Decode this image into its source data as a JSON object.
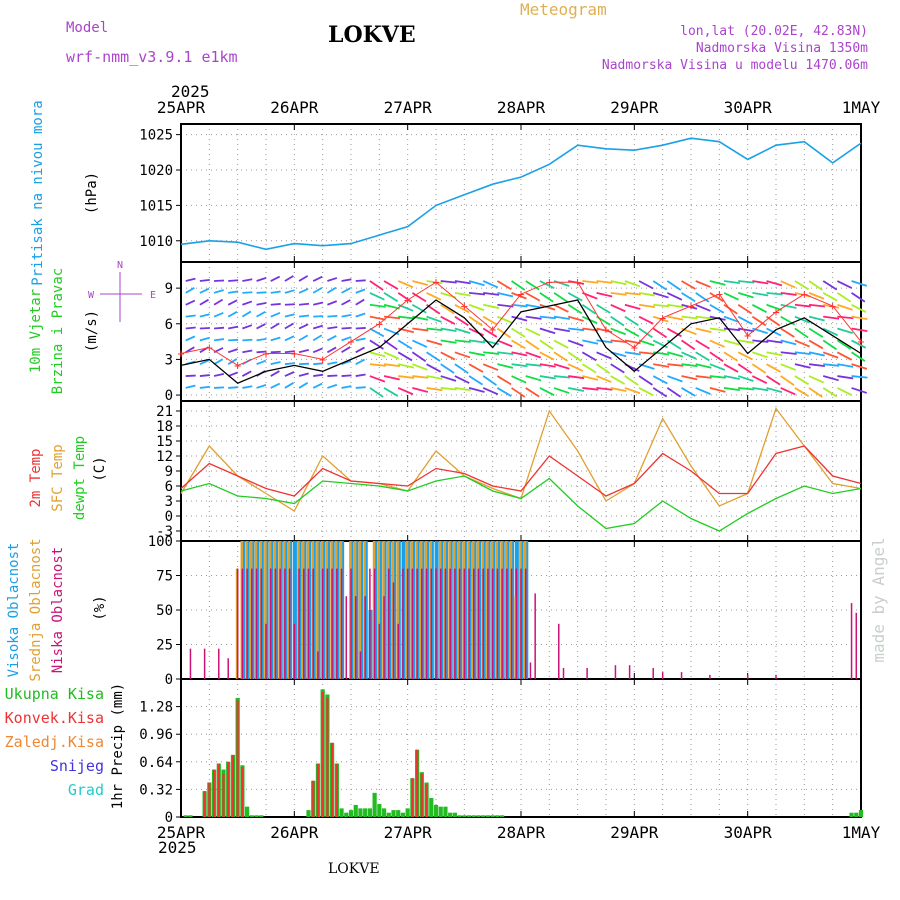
{
  "header": {
    "model_label": "Model",
    "model_name": "wrf-nmm_v3.9.1 e1km",
    "station": "LOKVE",
    "chart_kind": "Meteogram",
    "coords": "lon,lat (20.02E, 42.83N)",
    "elevation": "Nadmorska Visina 1350m",
    "model_elevation": "Nadmorska Visina u modelu 1470.06m",
    "credit": "made by Angel",
    "station_bottom": "LOKVE"
  },
  "colors": {
    "pressure": "#1aa0e6",
    "wind_speed": "#000000",
    "wind_gust": "#ff3333",
    "t2m": "#ee3333",
    "tsfc": "#e0a030",
    "dewpt": "#22cc22",
    "cloud_high": "#1aa0e6",
    "cloud_mid": "#e0a030",
    "cloud_low": "#cc1177",
    "precip_total": "#22bb22",
    "precip_conv": "#ee3333",
    "header_purple": "#aa44cc",
    "header_gold": "#e0b050"
  },
  "chart_data": [
    {
      "type": "line",
      "panel": "pressure",
      "ylabel_lines": [
        "Pritisak na nivou mora",
        "(hPa)"
      ],
      "yticks": [
        1010,
        1015,
        1020,
        1025
      ],
      "ylim": [
        1007,
        1026.5
      ],
      "x_labels_top": [
        "25APR",
        "26APR",
        "27APR",
        "28APR",
        "29APR",
        "30APR",
        "1MAY"
      ],
      "year_top": "2025",
      "x_hours": [
        0,
        6,
        12,
        18,
        24,
        30,
        36,
        42,
        48,
        54,
        60,
        66,
        72,
        78,
        84,
        90,
        96,
        102,
        108,
        114,
        120,
        126,
        132,
        138,
        144
      ],
      "series": [
        {
          "values": [
            1009.5,
            1010.0,
            1009.8,
            1008.8,
            1009.6,
            1009.3,
            1009.6,
            1010.8,
            1012.0,
            1015.0,
            1016.5,
            1018.0,
            1019.0,
            1020.8,
            1023.5,
            1023.0,
            1022.8,
            1023.5,
            1024.5,
            1024.0,
            1021.5,
            1023.5,
            1024.0,
            1021.0,
            1023.8
          ]
        }
      ]
    },
    {
      "type": "line",
      "panel": "wind",
      "ylabel_lines": [
        "10m Vjetar",
        "Brzina i Pravac",
        "(m/s)"
      ],
      "compass": {
        "n": "N",
        "w": "W",
        "e": "E"
      },
      "yticks": [
        0,
        3,
        6,
        9
      ],
      "ylim": [
        -0.5,
        11.2
      ],
      "x_hours": [
        0,
        6,
        12,
        18,
        24,
        30,
        36,
        42,
        48,
        54,
        60,
        66,
        72,
        78,
        84,
        90,
        96,
        102,
        108,
        114,
        120,
        126,
        132,
        138,
        144
      ],
      "series": [
        {
          "name": "speed",
          "values": [
            2.5,
            3.0,
            1.0,
            2.0,
            2.5,
            2.0,
            3.0,
            4.0,
            6.0,
            8.0,
            6.5,
            4.0,
            7.0,
            7.5,
            8.0,
            4.0,
            2.0,
            4.0,
            6.0,
            6.5,
            3.5,
            5.5,
            6.5,
            5.0,
            3.5
          ]
        },
        {
          "name": "gust",
          "values": [
            3.5,
            4.0,
            2.5,
            3.5,
            3.5,
            3.0,
            4.5,
            6.0,
            8.0,
            9.5,
            7.5,
            5.5,
            8.5,
            9.5,
            9.5,
            5.5,
            4.0,
            6.5,
            7.5,
            8.5,
            5.0,
            7.0,
            8.5,
            7.5,
            4.5
          ]
        }
      ]
    },
    {
      "type": "line",
      "panel": "temperature",
      "ylabel_lines": [
        "2m Temp",
        "SFC Temp",
        "dewpt Temp",
        "(C)"
      ],
      "yticks": [
        -3,
        0,
        3,
        6,
        9,
        12,
        15,
        18,
        21
      ],
      "ylim": [
        -5,
        23
      ],
      "x_hours": [
        0,
        6,
        12,
        18,
        24,
        30,
        36,
        42,
        48,
        54,
        60,
        66,
        72,
        78,
        84,
        90,
        96,
        102,
        108,
        114,
        120,
        126,
        132,
        138,
        144
      ],
      "series": [
        {
          "name": "2m Temp",
          "values": [
            5.5,
            10.5,
            8.0,
            5.5,
            4.0,
            9.5,
            7.0,
            6.5,
            6.0,
            9.5,
            8.5,
            6.0,
            5.0,
            12.0,
            8.0,
            4.0,
            6.5,
            12.5,
            9.0,
            4.5,
            4.5,
            12.5,
            14.0,
            8.0,
            6.5
          ]
        },
        {
          "name": "SFC Temp",
          "values": [
            4.5,
            14.0,
            8.0,
            4.5,
            1.0,
            12.0,
            7.0,
            6.5,
            5.0,
            13.0,
            8.0,
            5.5,
            3.5,
            21.0,
            13.0,
            3.0,
            6.5,
            19.5,
            10.0,
            2.0,
            4.5,
            21.5,
            14.0,
            6.5,
            5.5
          ]
        },
        {
          "name": "dewpt Temp",
          "values": [
            5.0,
            6.5,
            4.0,
            3.5,
            2.5,
            7.0,
            6.5,
            6.0,
            5.0,
            7.0,
            8.0,
            5.0,
            3.5,
            7.5,
            2.0,
            -2.5,
            -1.5,
            3.0,
            -0.5,
            -3.0,
            0.5,
            3.5,
            6.0,
            4.5,
            5.5
          ]
        }
      ]
    },
    {
      "type": "bar",
      "panel": "cloud",
      "ylabel_lines": [
        "Visoka Oblacnost",
        "Srednja Oblacnost",
        "Niska Oblacnost",
        "(%)"
      ],
      "yticks": [
        0,
        25,
        50,
        75,
        100
      ],
      "ylim": [
        0,
        100
      ],
      "x_hours": [
        2,
        5,
        8,
        10,
        12,
        13,
        14,
        15,
        16,
        17,
        18,
        19,
        20,
        21,
        22,
        23,
        24,
        25,
        26,
        27,
        28,
        29,
        30,
        31,
        32,
        33,
        34,
        35,
        36,
        37,
        38,
        39,
        40,
        41,
        42,
        43,
        44,
        45,
        46,
        47,
        48,
        49,
        50,
        51,
        52,
        53,
        54,
        55,
        56,
        57,
        58,
        59,
        60,
        61,
        62,
        63,
        64,
        65,
        66,
        67,
        68,
        69,
        70,
        71,
        72,
        73,
        74,
        75,
        80,
        81,
        86,
        92,
        95,
        100,
        102,
        106,
        112,
        120,
        126,
        142,
        143
      ],
      "series": [
        {
          "name": "Visoka Oblacnost",
          "values": [
            0,
            0,
            0,
            0,
            0,
            100,
            100,
            100,
            100,
            100,
            100,
            100,
            100,
            100,
            100,
            100,
            100,
            100,
            100,
            100,
            100,
            100,
            100,
            100,
            100,
            100,
            100,
            0,
            100,
            100,
            100,
            100,
            50,
            100,
            100,
            100,
            100,
            100,
            100,
            100,
            100,
            100,
            100,
            100,
            100,
            100,
            100,
            100,
            100,
            100,
            100,
            100,
            100,
            100,
            100,
            100,
            100,
            100,
            100,
            100,
            100,
            100,
            100,
            100,
            100,
            100,
            0,
            0,
            0,
            0,
            0,
            0,
            0,
            0,
            0,
            0,
            0,
            0,
            0,
            0,
            0
          ]
        },
        {
          "name": "Srednja Oblacnost",
          "values": [
            0,
            0,
            0,
            0,
            80,
            100,
            100,
            100,
            100,
            100,
            100,
            100,
            100,
            100,
            100,
            100,
            0,
            100,
            100,
            100,
            100,
            100,
            100,
            100,
            100,
            100,
            100,
            0,
            100,
            100,
            100,
            100,
            0,
            100,
            100,
            100,
            100,
            100,
            100,
            0,
            100,
            100,
            100,
            100,
            100,
            100,
            0,
            100,
            100,
            100,
            100,
            100,
            100,
            100,
            100,
            100,
            100,
            100,
            100,
            100,
            100,
            100,
            100,
            60,
            100,
            100,
            0,
            0,
            0,
            0,
            0,
            0,
            0,
            0,
            0,
            0,
            0,
            0,
            0,
            0,
            0
          ]
        },
        {
          "name": "Niska Oblacnost",
          "values": [
            22,
            22,
            22,
            15,
            80,
            80,
            80,
            80,
            80,
            80,
            40,
            80,
            80,
            80,
            80,
            80,
            40,
            80,
            80,
            80,
            80,
            20,
            80,
            80,
            80,
            80,
            80,
            60,
            80,
            60,
            20,
            60,
            80,
            80,
            40,
            60,
            80,
            70,
            40,
            80,
            80,
            80,
            80,
            80,
            80,
            80,
            80,
            80,
            80,
            80,
            80,
            80,
            80,
            80,
            80,
            80,
            80,
            80,
            80,
            80,
            80,
            80,
            80,
            80,
            80,
            80,
            12,
            62,
            40,
            8,
            8,
            10,
            10,
            8,
            5,
            5,
            3,
            3,
            3,
            55,
            48
          ]
        }
      ]
    },
    {
      "type": "bar",
      "panel": "precip",
      "ylabel_lines": [
        "1hr Precip (mm)"
      ],
      "legend": [
        {
          "label": "Ukupna Kisa",
          "color": "#22bb22"
        },
        {
          "label": "Konvek.Kisa",
          "color": "#ee3333"
        },
        {
          "label": "Zaledj.Kisa",
          "color": "#ee8833"
        },
        {
          "label": "Snijeg",
          "color": "#4433dd"
        },
        {
          "label": "Grad",
          "color": "#22cccc"
        }
      ],
      "yticks": [
        0,
        0.32,
        0.64,
        0.96,
        1.28
      ],
      "ylim": [
        0,
        1.6
      ],
      "x_labels_bottom": [
        "25APR",
        "26APR",
        "27APR",
        "28APR",
        "29APR",
        "30APR",
        "1MAY"
      ],
      "year_bottom": "2025",
      "x_hours": [
        1,
        2,
        5,
        6,
        7,
        8,
        9,
        10,
        11,
        12,
        13,
        14,
        15,
        16,
        17,
        27,
        28,
        29,
        30,
        31,
        32,
        33,
        34,
        35,
        36,
        37,
        38,
        39,
        40,
        41,
        42,
        43,
        44,
        45,
        46,
        47,
        48,
        49,
        50,
        51,
        52,
        53,
        54,
        55,
        56,
        57,
        58,
        59,
        60,
        61,
        62,
        63,
        64,
        65,
        66,
        67,
        68,
        142,
        143,
        144
      ],
      "series": [
        {
          "name": "Ukupna Kisa",
          "values": [
            0.02,
            0.02,
            0.3,
            0.4,
            0.55,
            0.62,
            0.55,
            0.64,
            0.72,
            1.38,
            0.6,
            0.12,
            0.02,
            0.02,
            0.02,
            0.08,
            0.42,
            0.62,
            1.48,
            1.42,
            0.86,
            0.62,
            0.1,
            0.05,
            0.08,
            0.14,
            0.1,
            0.1,
            0.1,
            0.28,
            0.15,
            0.1,
            0.05,
            0.08,
            0.08,
            0.05,
            0.1,
            0.45,
            0.78,
            0.52,
            0.4,
            0.22,
            0.14,
            0.12,
            0.12,
            0.05,
            0.05,
            0.02,
            0.02,
            0.02,
            0.02,
            0.02,
            0.02,
            0.02,
            0.02,
            0.02,
            0.02,
            0.05,
            0.05,
            0.08
          ]
        },
        {
          "name": "Konvek.Kisa",
          "values": [
            0,
            0,
            0.3,
            0.4,
            0.55,
            0.62,
            0.5,
            0.64,
            0.72,
            1.35,
            0.58,
            0,
            0,
            0,
            0,
            0,
            0.42,
            0.62,
            1.45,
            1.38,
            0.86,
            0.62,
            0,
            0,
            0,
            0,
            0,
            0,
            0,
            0,
            0,
            0,
            0,
            0,
            0,
            0,
            0,
            0.45,
            0.78,
            0.5,
            0.38,
            0,
            0,
            0,
            0,
            0,
            0,
            0,
            0,
            0,
            0,
            0,
            0,
            0,
            0,
            0,
            0,
            0,
            0,
            0
          ]
        }
      ]
    }
  ]
}
